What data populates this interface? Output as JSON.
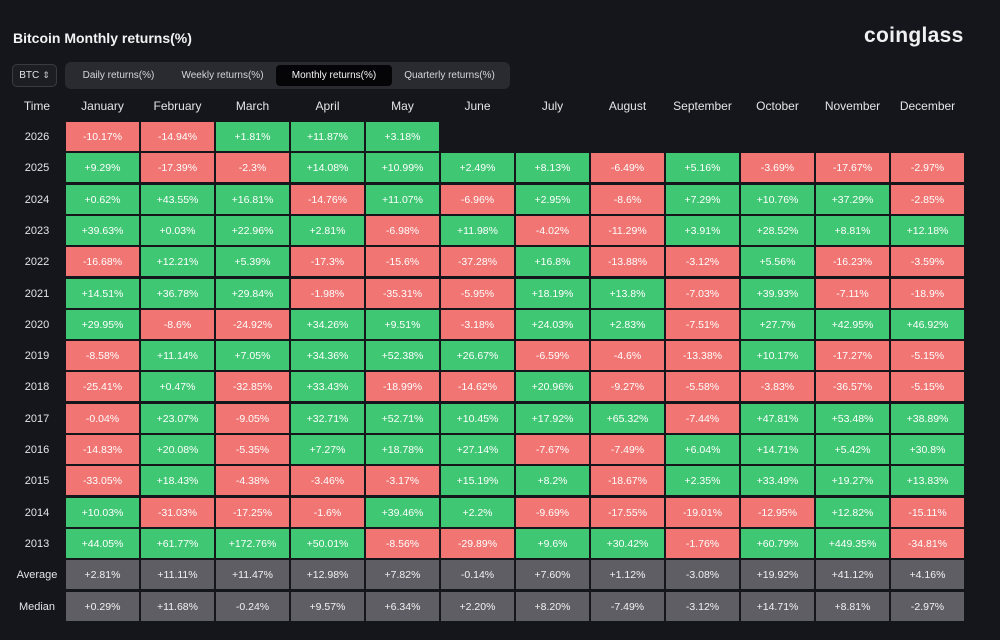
{
  "title": "Bitcoin Monthly returns(%)",
  "brand": "coinglass",
  "coin_select": {
    "value": "BTC",
    "icon": "up-down-chevron-icon"
  },
  "tabs": [
    {
      "label": "Daily returns(%)",
      "active": false
    },
    {
      "label": "Weekly returns(%)",
      "active": false
    },
    {
      "label": "Monthly returns(%)",
      "active": true
    },
    {
      "label": "Quarterly returns(%)",
      "active": false
    }
  ],
  "colors": {
    "positive": "#3fc774",
    "negative": "#f07573",
    "summary": "#5e5e64",
    "background": "#15161b"
  },
  "chart_data": {
    "type": "table",
    "corner_label": "Time",
    "columns": [
      "January",
      "February",
      "March",
      "April",
      "May",
      "June",
      "July",
      "August",
      "September",
      "October",
      "November",
      "December"
    ],
    "rows": [
      {
        "label": "2026",
        "values": [
          "-10.17%",
          "-14.94%",
          "+1.81%",
          "+11.87%",
          "+3.18%",
          null,
          null,
          null,
          null,
          null,
          null,
          null
        ]
      },
      {
        "label": "2025",
        "values": [
          "+9.29%",
          "-17.39%",
          "-2.3%",
          "+14.08%",
          "+10.99%",
          "+2.49%",
          "+8.13%",
          "-6.49%",
          "+5.16%",
          "-3.69%",
          "-17.67%",
          "-2.97%"
        ]
      },
      {
        "label": "2024",
        "values": [
          "+0.62%",
          "+43.55%",
          "+16.81%",
          "-14.76%",
          "+11.07%",
          "-6.96%",
          "+2.95%",
          "-8.6%",
          "+7.29%",
          "+10.76%",
          "+37.29%",
          "-2.85%"
        ]
      },
      {
        "label": "2023",
        "values": [
          "+39.63%",
          "+0.03%",
          "+22.96%",
          "+2.81%",
          "-6.98%",
          "+11.98%",
          "-4.02%",
          "-11.29%",
          "+3.91%",
          "+28.52%",
          "+8.81%",
          "+12.18%"
        ]
      },
      {
        "label": "2022",
        "values": [
          "-16.68%",
          "+12.21%",
          "+5.39%",
          "-17.3%",
          "-15.6%",
          "-37.28%",
          "+16.8%",
          "-13.88%",
          "-3.12%",
          "+5.56%",
          "-16.23%",
          "-3.59%"
        ]
      },
      {
        "label": "2021",
        "values": [
          "+14.51%",
          "+36.78%",
          "+29.84%",
          "-1.98%",
          "-35.31%",
          "-5.95%",
          "+18.19%",
          "+13.8%",
          "-7.03%",
          "+39.93%",
          "-7.11%",
          "-18.9%"
        ]
      },
      {
        "label": "2020",
        "values": [
          "+29.95%",
          "-8.6%",
          "-24.92%",
          "+34.26%",
          "+9.51%",
          "-3.18%",
          "+24.03%",
          "+2.83%",
          "-7.51%",
          "+27.7%",
          "+42.95%",
          "+46.92%"
        ]
      },
      {
        "label": "2019",
        "values": [
          "-8.58%",
          "+11.14%",
          "+7.05%",
          "+34.36%",
          "+52.38%",
          "+26.67%",
          "-6.59%",
          "-4.6%",
          "-13.38%",
          "+10.17%",
          "-17.27%",
          "-5.15%"
        ]
      },
      {
        "label": "2018",
        "values": [
          "-25.41%",
          "+0.47%",
          "-32.85%",
          "+33.43%",
          "-18.99%",
          "-14.62%",
          "+20.96%",
          "-9.27%",
          "-5.58%",
          "-3.83%",
          "-36.57%",
          "-5.15%"
        ]
      },
      {
        "label": "2017",
        "values": [
          "-0.04%",
          "+23.07%",
          "-9.05%",
          "+32.71%",
          "+52.71%",
          "+10.45%",
          "+17.92%",
          "+65.32%",
          "-7.44%",
          "+47.81%",
          "+53.48%",
          "+38.89%"
        ]
      },
      {
        "label": "2016",
        "values": [
          "-14.83%",
          "+20.08%",
          "-5.35%",
          "+7.27%",
          "+18.78%",
          "+27.14%",
          "-7.67%",
          "-7.49%",
          "+6.04%",
          "+14.71%",
          "+5.42%",
          "+30.8%"
        ]
      },
      {
        "label": "2015",
        "values": [
          "-33.05%",
          "+18.43%",
          "-4.38%",
          "-3.46%",
          "-3.17%",
          "+15.19%",
          "+8.2%",
          "-18.67%",
          "+2.35%",
          "+33.49%",
          "+19.27%",
          "+13.83%"
        ]
      },
      {
        "label": "2014",
        "values": [
          "+10.03%",
          "-31.03%",
          "-17.25%",
          "-1.6%",
          "+39.46%",
          "+2.2%",
          "-9.69%",
          "-17.55%",
          "-19.01%",
          "-12.95%",
          "+12.82%",
          "-15.11%"
        ]
      },
      {
        "label": "2013",
        "values": [
          "+44.05%",
          "+61.77%",
          "+172.76%",
          "+50.01%",
          "-8.56%",
          "-29.89%",
          "+9.6%",
          "+30.42%",
          "-1.76%",
          "+60.79%",
          "+449.35%",
          "-34.81%"
        ]
      }
    ],
    "summary_rows": [
      {
        "label": "Average",
        "values": [
          "+2.81%",
          "+11.11%",
          "+11.47%",
          "+12.98%",
          "+7.82%",
          "-0.14%",
          "+7.60%",
          "+1.12%",
          "-3.08%",
          "+19.92%",
          "+41.12%",
          "+4.16%"
        ]
      },
      {
        "label": "Median",
        "values": [
          "+0.29%",
          "+11.68%",
          "-0.24%",
          "+9.57%",
          "+6.34%",
          "+2.20%",
          "+8.20%",
          "-7.49%",
          "-3.12%",
          "+14.71%",
          "+8.81%",
          "-2.97%"
        ]
      }
    ]
  }
}
